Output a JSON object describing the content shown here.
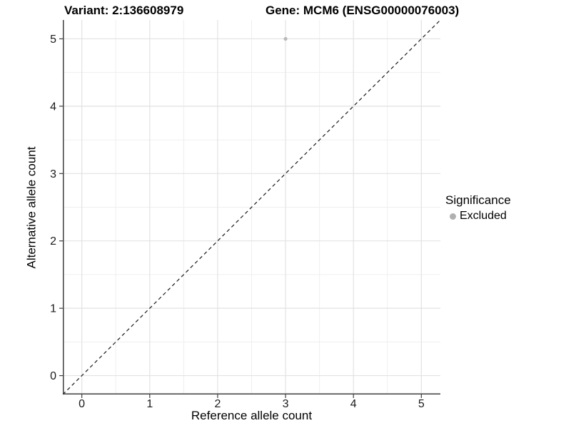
{
  "chart_data": {
    "type": "scatter",
    "title_left": "Variant: 2:136608979",
    "title_right": "Gene: MCM6 (ENSG00000076003)",
    "xlabel": "Reference allele count",
    "ylabel": "Alternative allele count",
    "xlim": [
      -0.28,
      5.28
    ],
    "ylim": [
      -0.28,
      5.28
    ],
    "x_ticks": [
      0,
      1,
      2,
      3,
      4,
      5
    ],
    "y_ticks": [
      0,
      1,
      2,
      3,
      4,
      5
    ],
    "grid": "major+minor",
    "abline": {
      "slope": 1,
      "intercept": 0,
      "style": "dashed"
    },
    "series": [
      {
        "name": "Excluded",
        "color": "#b8b8b8",
        "points": [
          {
            "x": 3,
            "y": 5
          }
        ]
      }
    ],
    "legend": {
      "position": "right",
      "title": "Significance",
      "items": [
        {
          "label": "Excluded",
          "color": "#b0b0b0"
        }
      ]
    },
    "colors": {
      "background": "#ffffff",
      "axis": "#3f3f3f",
      "grid_major": "#e2e2e2",
      "grid_minor": "#efefef",
      "text": "#1a1a1a",
      "abline": "#1a1a1a"
    }
  }
}
